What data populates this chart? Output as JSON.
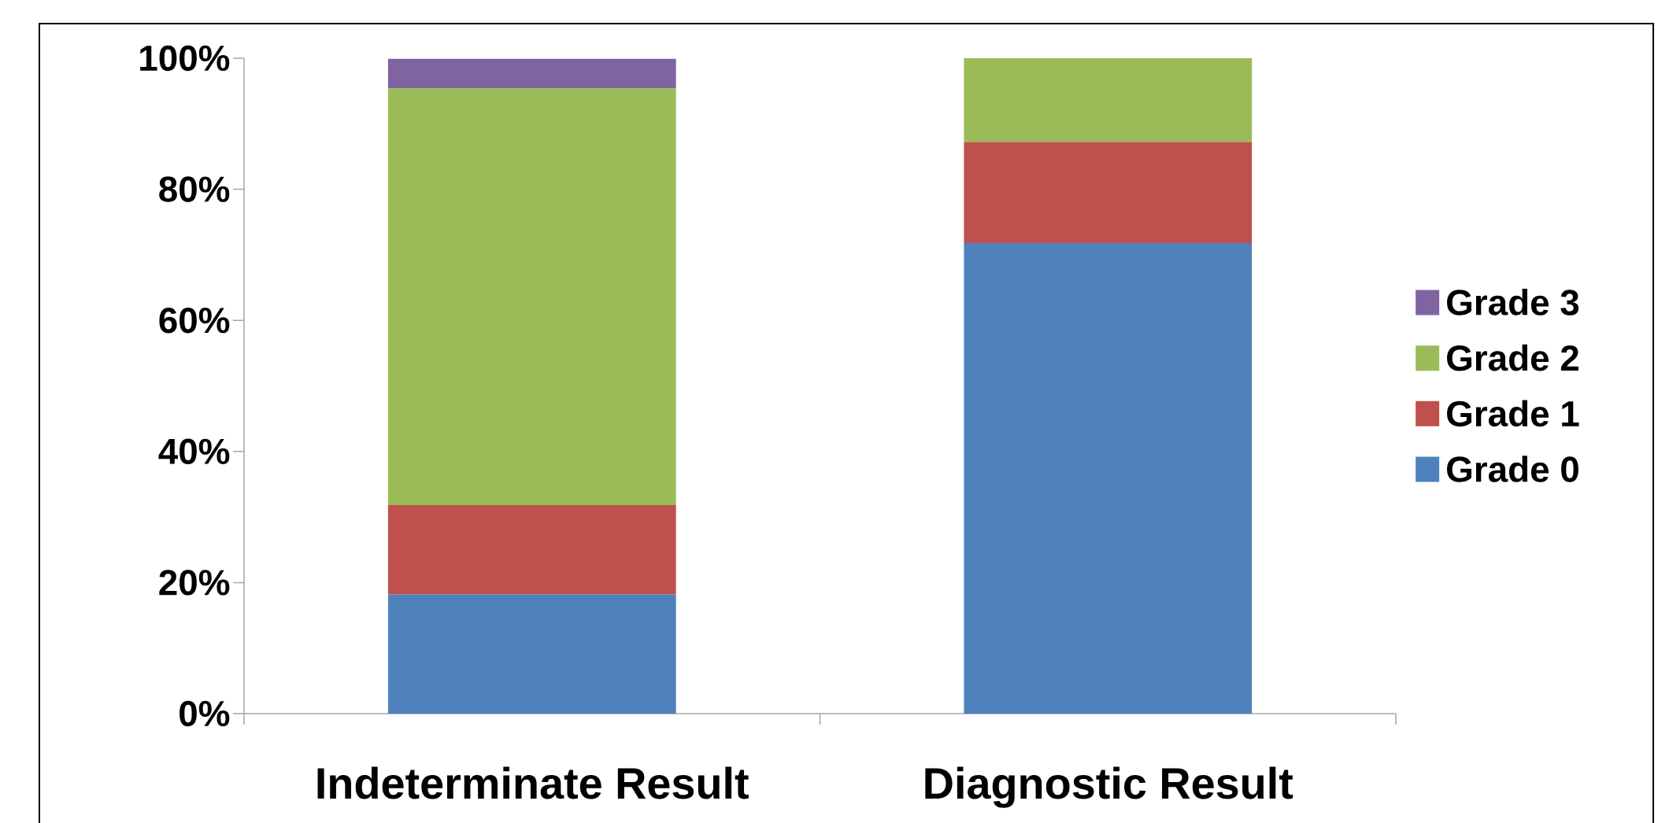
{
  "chart_data": {
    "type": "bar",
    "stacked": true,
    "categories": [
      "Indeterminate Result",
      "Diagnostic Result"
    ],
    "series": [
      {
        "name": "Grade 0",
        "color": "#4f81bd",
        "values": [
          18.2,
          71.8
        ]
      },
      {
        "name": "Grade 1",
        "color": "#c0504d",
        "values": [
          13.6,
          15.4
        ]
      },
      {
        "name": "Grade 2",
        "color": "#9bbb59",
        "values": [
          63.6,
          12.8
        ]
      },
      {
        "name": "Grade 3",
        "color": "#8064a2",
        "values": [
          4.5,
          0
        ]
      }
    ],
    "ylim": [
      0,
      100
    ],
    "yticks": [
      {
        "value": 0,
        "label": "0%"
      },
      {
        "value": 20,
        "label": "20%"
      },
      {
        "value": 40,
        "label": "40%"
      },
      {
        "value": 60,
        "label": "60%"
      },
      {
        "value": 80,
        "label": "80%"
      },
      {
        "value": 100,
        "label": "100%"
      }
    ],
    "legend": "right",
    "grid": false
  }
}
